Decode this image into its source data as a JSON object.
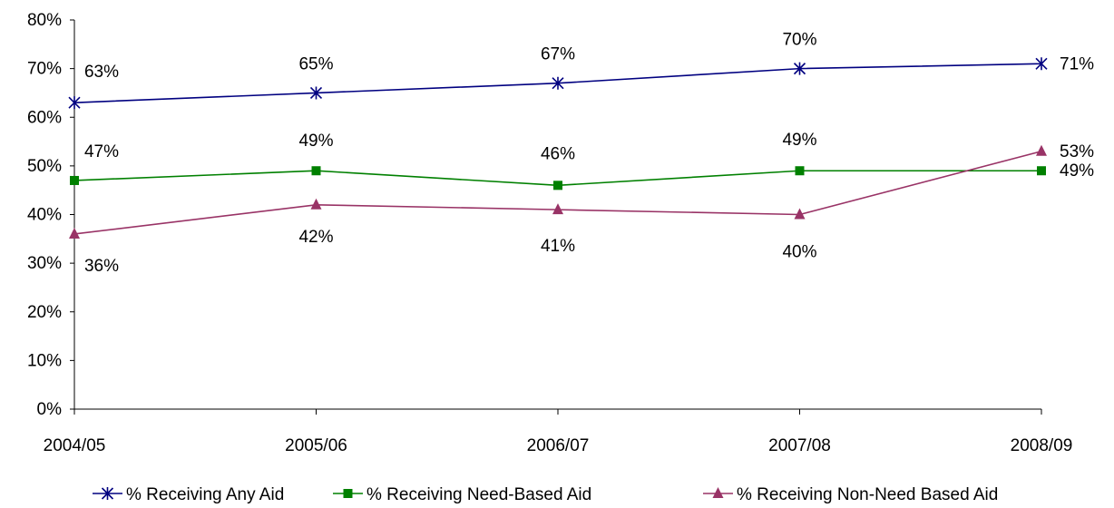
{
  "chart_data": {
    "type": "line",
    "x": [
      "2004/05",
      "2005/06",
      "2006/07",
      "2007/08",
      "2008/09"
    ],
    "ylim": [
      0,
      80
    ],
    "yticks": [
      0,
      10,
      20,
      30,
      40,
      50,
      60,
      70,
      80
    ],
    "ytick_labels": [
      "0%",
      "10%",
      "20%",
      "30%",
      "40%",
      "50%",
      "60%",
      "70%",
      "80%"
    ],
    "grid": false,
    "legend_position": "bottom",
    "series": [
      {
        "name": "% Receiving Any Aid",
        "values": [
          63,
          65,
          67,
          70,
          71
        ],
        "labels": [
          "63%",
          "65%",
          "67%",
          "70%",
          "71%"
        ],
        "color": "#000080",
        "marker": "star"
      },
      {
        "name": "% Receiving Need-Based Aid",
        "values": [
          47,
          49,
          46,
          49,
          49
        ],
        "labels": [
          "47%",
          "49%",
          "46%",
          "49%",
          "49%"
        ],
        "color": "#008000",
        "marker": "square"
      },
      {
        "name": "% Receiving Non-Need Based Aid",
        "values": [
          36,
          42,
          41,
          40,
          53
        ],
        "labels": [
          "36%",
          "42%",
          "41%",
          "40%",
          "53%"
        ],
        "color": "#993366",
        "marker": "triangle"
      }
    ]
  }
}
